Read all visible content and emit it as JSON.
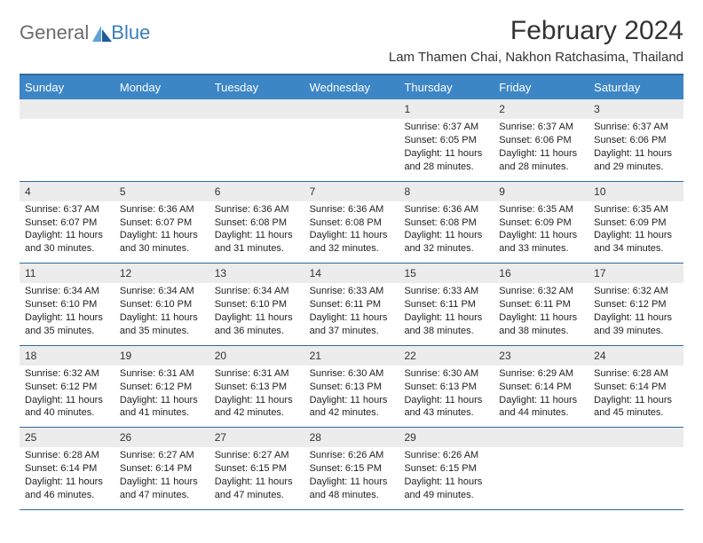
{
  "logo": {
    "text1": "General",
    "text2": "Blue"
  },
  "title": "February 2024",
  "subtitle": "Lam Thamen Chai, Nakhon Ratchasima, Thailand",
  "colors": {
    "header_bg": "#3d86c6",
    "header_text": "#ffffff",
    "rule": "#2f6aa0",
    "num_bg": "#ececec",
    "logo_gray": "#6b6b6b",
    "logo_blue": "#3a7fbf",
    "sail_light": "#5fa3d8",
    "sail_dark": "#1f5c99"
  },
  "typography": {
    "title_size": 30,
    "subtitle_size": 15,
    "dayheader_size": 13,
    "cellnum_size": 12,
    "cellbody_size": 11
  },
  "day_names": [
    "Sunday",
    "Monday",
    "Tuesday",
    "Wednesday",
    "Thursday",
    "Friday",
    "Saturday"
  ],
  "weeks": [
    [
      {
        "n": "",
        "sr": "",
        "ss": "",
        "dl1": "",
        "dl2": ""
      },
      {
        "n": "",
        "sr": "",
        "ss": "",
        "dl1": "",
        "dl2": ""
      },
      {
        "n": "",
        "sr": "",
        "ss": "",
        "dl1": "",
        "dl2": ""
      },
      {
        "n": "",
        "sr": "",
        "ss": "",
        "dl1": "",
        "dl2": ""
      },
      {
        "n": "1",
        "sr": "Sunrise: 6:37 AM",
        "ss": "Sunset: 6:05 PM",
        "dl1": "Daylight: 11 hours",
        "dl2": "and 28 minutes."
      },
      {
        "n": "2",
        "sr": "Sunrise: 6:37 AM",
        "ss": "Sunset: 6:06 PM",
        "dl1": "Daylight: 11 hours",
        "dl2": "and 28 minutes."
      },
      {
        "n": "3",
        "sr": "Sunrise: 6:37 AM",
        "ss": "Sunset: 6:06 PM",
        "dl1": "Daylight: 11 hours",
        "dl2": "and 29 minutes."
      }
    ],
    [
      {
        "n": "4",
        "sr": "Sunrise: 6:37 AM",
        "ss": "Sunset: 6:07 PM",
        "dl1": "Daylight: 11 hours",
        "dl2": "and 30 minutes."
      },
      {
        "n": "5",
        "sr": "Sunrise: 6:36 AM",
        "ss": "Sunset: 6:07 PM",
        "dl1": "Daylight: 11 hours",
        "dl2": "and 30 minutes."
      },
      {
        "n": "6",
        "sr": "Sunrise: 6:36 AM",
        "ss": "Sunset: 6:08 PM",
        "dl1": "Daylight: 11 hours",
        "dl2": "and 31 minutes."
      },
      {
        "n": "7",
        "sr": "Sunrise: 6:36 AM",
        "ss": "Sunset: 6:08 PM",
        "dl1": "Daylight: 11 hours",
        "dl2": "and 32 minutes."
      },
      {
        "n": "8",
        "sr": "Sunrise: 6:36 AM",
        "ss": "Sunset: 6:08 PM",
        "dl1": "Daylight: 11 hours",
        "dl2": "and 32 minutes."
      },
      {
        "n": "9",
        "sr": "Sunrise: 6:35 AM",
        "ss": "Sunset: 6:09 PM",
        "dl1": "Daylight: 11 hours",
        "dl2": "and 33 minutes."
      },
      {
        "n": "10",
        "sr": "Sunrise: 6:35 AM",
        "ss": "Sunset: 6:09 PM",
        "dl1": "Daylight: 11 hours",
        "dl2": "and 34 minutes."
      }
    ],
    [
      {
        "n": "11",
        "sr": "Sunrise: 6:34 AM",
        "ss": "Sunset: 6:10 PM",
        "dl1": "Daylight: 11 hours",
        "dl2": "and 35 minutes."
      },
      {
        "n": "12",
        "sr": "Sunrise: 6:34 AM",
        "ss": "Sunset: 6:10 PM",
        "dl1": "Daylight: 11 hours",
        "dl2": "and 35 minutes."
      },
      {
        "n": "13",
        "sr": "Sunrise: 6:34 AM",
        "ss": "Sunset: 6:10 PM",
        "dl1": "Daylight: 11 hours",
        "dl2": "and 36 minutes."
      },
      {
        "n": "14",
        "sr": "Sunrise: 6:33 AM",
        "ss": "Sunset: 6:11 PM",
        "dl1": "Daylight: 11 hours",
        "dl2": "and 37 minutes."
      },
      {
        "n": "15",
        "sr": "Sunrise: 6:33 AM",
        "ss": "Sunset: 6:11 PM",
        "dl1": "Daylight: 11 hours",
        "dl2": "and 38 minutes."
      },
      {
        "n": "16",
        "sr": "Sunrise: 6:32 AM",
        "ss": "Sunset: 6:11 PM",
        "dl1": "Daylight: 11 hours",
        "dl2": "and 38 minutes."
      },
      {
        "n": "17",
        "sr": "Sunrise: 6:32 AM",
        "ss": "Sunset: 6:12 PM",
        "dl1": "Daylight: 11 hours",
        "dl2": "and 39 minutes."
      }
    ],
    [
      {
        "n": "18",
        "sr": "Sunrise: 6:32 AM",
        "ss": "Sunset: 6:12 PM",
        "dl1": "Daylight: 11 hours",
        "dl2": "and 40 minutes."
      },
      {
        "n": "19",
        "sr": "Sunrise: 6:31 AM",
        "ss": "Sunset: 6:12 PM",
        "dl1": "Daylight: 11 hours",
        "dl2": "and 41 minutes."
      },
      {
        "n": "20",
        "sr": "Sunrise: 6:31 AM",
        "ss": "Sunset: 6:13 PM",
        "dl1": "Daylight: 11 hours",
        "dl2": "and 42 minutes."
      },
      {
        "n": "21",
        "sr": "Sunrise: 6:30 AM",
        "ss": "Sunset: 6:13 PM",
        "dl1": "Daylight: 11 hours",
        "dl2": "and 42 minutes."
      },
      {
        "n": "22",
        "sr": "Sunrise: 6:30 AM",
        "ss": "Sunset: 6:13 PM",
        "dl1": "Daylight: 11 hours",
        "dl2": "and 43 minutes."
      },
      {
        "n": "23",
        "sr": "Sunrise: 6:29 AM",
        "ss": "Sunset: 6:14 PM",
        "dl1": "Daylight: 11 hours",
        "dl2": "and 44 minutes."
      },
      {
        "n": "24",
        "sr": "Sunrise: 6:28 AM",
        "ss": "Sunset: 6:14 PM",
        "dl1": "Daylight: 11 hours",
        "dl2": "and 45 minutes."
      }
    ],
    [
      {
        "n": "25",
        "sr": "Sunrise: 6:28 AM",
        "ss": "Sunset: 6:14 PM",
        "dl1": "Daylight: 11 hours",
        "dl2": "and 46 minutes."
      },
      {
        "n": "26",
        "sr": "Sunrise: 6:27 AM",
        "ss": "Sunset: 6:14 PM",
        "dl1": "Daylight: 11 hours",
        "dl2": "and 47 minutes."
      },
      {
        "n": "27",
        "sr": "Sunrise: 6:27 AM",
        "ss": "Sunset: 6:15 PM",
        "dl1": "Daylight: 11 hours",
        "dl2": "and 47 minutes."
      },
      {
        "n": "28",
        "sr": "Sunrise: 6:26 AM",
        "ss": "Sunset: 6:15 PM",
        "dl1": "Daylight: 11 hours",
        "dl2": "and 48 minutes."
      },
      {
        "n": "29",
        "sr": "Sunrise: 6:26 AM",
        "ss": "Sunset: 6:15 PM",
        "dl1": "Daylight: 11 hours",
        "dl2": "and 49 minutes."
      },
      {
        "n": "",
        "sr": "",
        "ss": "",
        "dl1": "",
        "dl2": ""
      },
      {
        "n": "",
        "sr": "",
        "ss": "",
        "dl1": "",
        "dl2": ""
      }
    ]
  ]
}
